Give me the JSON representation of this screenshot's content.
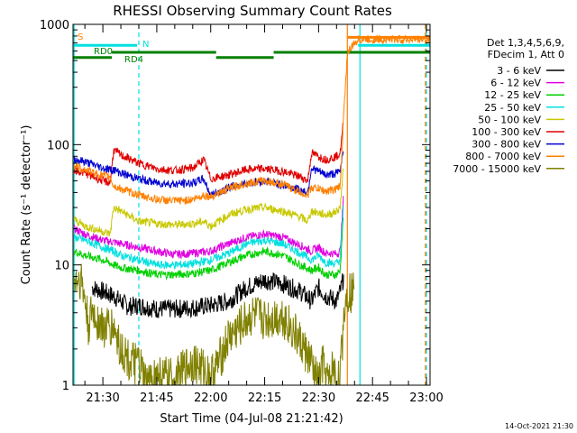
{
  "chart_data": {
    "type": "line",
    "title": "RHESSI Observing Summary Count Rates",
    "xlabel": "Start Time (04-Jul-08 21:21:42)",
    "ylabel": "Count Rate (s⁻¹ detector⁻¹)",
    "yscale": "log",
    "xlim_minutes_after_2100": [
      21.7,
      121.0
    ],
    "ylim": [
      1,
      1000
    ],
    "x_tick_labels": [
      "21:30",
      "21:45",
      "22:00",
      "22:15",
      "22:30",
      "22:45",
      "23:00"
    ],
    "x_tick_values_minutes_after_2100": [
      30,
      45,
      60,
      75,
      90,
      105,
      120
    ],
    "y_tick_labels": [
      "1",
      "10",
      "100",
      "1000"
    ],
    "y_tick_values": [
      1,
      10,
      100,
      1000
    ],
    "legend_header": [
      "Det 1,3,4,5,6,9,",
      "FDecim 1, Att 0"
    ],
    "legend_placement": "right",
    "x_unit": "minutes after 21:00",
    "series": [
      {
        "name": "3 - 6 keV",
        "color": "#000000",
        "x": [
          27,
          30,
          33,
          35,
          37,
          40,
          45,
          50,
          55,
          60,
          65,
          70,
          75,
          80,
          85,
          88,
          90,
          92,
          94,
          95,
          96,
          97
        ],
        "values": [
          6.5,
          6.0,
          5.5,
          5.0,
          4.5,
          4.6,
          4.3,
          4.3,
          4.4,
          4.6,
          5.0,
          6.5,
          7.5,
          7.0,
          6.0,
          5.0,
          6.5,
          5.5,
          5.2,
          5.0,
          6.0,
          8.0
        ]
      },
      {
        "name": "6 - 12 keV",
        "color": "#e000e0",
        "x": [
          22,
          25,
          30,
          33,
          35,
          40,
          45,
          50,
          55,
          60,
          65,
          70,
          75,
          80,
          85,
          88,
          90,
          92,
          94,
          95,
          96,
          97
        ],
        "values": [
          20,
          18,
          16,
          15.5,
          15,
          14,
          13,
          12.2,
          12.5,
          13,
          15,
          17,
          18,
          17,
          14.5,
          13,
          14,
          12.5,
          12.5,
          12.3,
          13,
          40
        ]
      },
      {
        "name": "12 - 25 keV",
        "color": "#00d000",
        "x": [
          22,
          25,
          30,
          33,
          35,
          40,
          45,
          50,
          55,
          60,
          65,
          70,
          75,
          80,
          85,
          88,
          90,
          92,
          94,
          95,
          96,
          97
        ],
        "values": [
          13,
          12,
          11,
          10,
          9.5,
          9,
          8.3,
          8.3,
          8.5,
          9,
          10.5,
          12,
          13,
          12,
          10,
          9,
          9.5,
          8.3,
          8.3,
          8.3,
          9,
          30
        ]
      },
      {
        "name": "25 - 50 keV",
        "color": "#00e0e0",
        "x": [
          22,
          25,
          30,
          33,
          35,
          40,
          45,
          50,
          55,
          60,
          65,
          70,
          75,
          80,
          85,
          88,
          90,
          92,
          94,
          95,
          96,
          97
        ],
        "values": [
          17,
          16,
          14,
          13,
          12,
          11,
          10,
          10,
          10.2,
          11,
          12.5,
          15,
          16,
          15,
          12.5,
          11,
          12,
          10.5,
          10.3,
          10.3,
          11,
          35
        ]
      },
      {
        "name": "50 - 100 keV",
        "color": "#c8c800",
        "x": [
          22,
          25,
          30,
          32,
          33,
          35,
          40,
          45,
          50,
          55,
          58,
          60,
          65,
          70,
          75,
          80,
          85,
          87,
          88,
          90,
          92,
          94,
          95,
          96,
          97
        ],
        "values": [
          24,
          21,
          19,
          18,
          30,
          28,
          23,
          22,
          21.5,
          22,
          23,
          21,
          26,
          29,
          30,
          28,
          25,
          23,
          28,
          27,
          26,
          27,
          28,
          30,
          70
        ]
      },
      {
        "name": "100 - 300 keV",
        "color": "#e00000",
        "x": [
          22,
          25,
          30,
          32,
          33,
          35,
          40,
          45,
          50,
          55,
          58,
          60,
          65,
          70,
          75,
          80,
          85,
          87,
          88,
          90,
          92,
          94,
          95,
          96,
          97
        ],
        "values": [
          62,
          58,
          50,
          48,
          90,
          82,
          70,
          63,
          61,
          64,
          75,
          52,
          56,
          62,
          63,
          60,
          54,
          50,
          85,
          80,
          75,
          78,
          80,
          85,
          165
        ]
      },
      {
        "name": "300 - 800 keV",
        "color": "#0000d0",
        "x": [
          22,
          25,
          30,
          32,
          33,
          35,
          40,
          45,
          50,
          55,
          58,
          60,
          65,
          70,
          75,
          80,
          85,
          87,
          88,
          90,
          92,
          94,
          95,
          96,
          97
        ],
        "values": [
          76,
          72,
          64,
          62,
          62,
          58,
          52,
          48,
          47,
          48,
          52,
          38,
          44,
          48,
          50,
          46,
          42,
          40,
          64,
          60,
          56,
          57,
          58,
          60,
          100
        ]
      },
      {
        "name": "800 - 7000 keV",
        "color": "#ff8000",
        "x": [
          22,
          25,
          30,
          32,
          33,
          35,
          40,
          45,
          50,
          55,
          58,
          60,
          65,
          70,
          75,
          80,
          85,
          87,
          88,
          90,
          92,
          94,
          95,
          96,
          97,
          98,
          101,
          121
        ],
        "values": [
          66,
          62,
          55,
          54,
          45,
          43,
          38,
          35,
          34,
          35,
          38,
          37,
          43,
          48,
          50,
          47,
          40,
          38,
          44,
          43,
          41,
          42,
          43,
          45,
          180,
          580,
          750,
          750
        ]
      },
      {
        "name": "7000 - 15000 keV",
        "color": "#808000",
        "x": [
          22,
          24,
          25,
          26,
          27,
          30,
          33,
          35,
          38,
          40,
          42,
          45,
          50,
          55,
          60,
          62,
          65,
          68,
          70,
          72,
          75,
          80,
          84,
          86,
          88,
          89,
          90,
          91,
          92,
          93,
          94,
          95,
          96,
          96.5,
          97,
          98,
          100
        ],
        "values": [
          7.5,
          7.5,
          5,
          3,
          4,
          3,
          3,
          2,
          1.5,
          1.5,
          1,
          1.2,
          1.1,
          1.6,
          1.2,
          1.5,
          2.5,
          3,
          3.5,
          3.8,
          3.5,
          3.8,
          2.5,
          2,
          1.5,
          1.2,
          1,
          1.5,
          1.2,
          1,
          1.5,
          1,
          1.2,
          2,
          4,
          6,
          6
        ]
      }
    ],
    "annotations": {
      "state_bars": [
        {
          "label": "S",
          "color": "#ff8000",
          "x_start": 21.7,
          "x_end": 21.7,
          "x_start_2": 98.0,
          "x_end_2": 121.0,
          "y": 780
        },
        {
          "label": "N",
          "color": "#00e0e0",
          "x_start": 21.7,
          "x_end": 39.5,
          "x_start_2": 101.0,
          "x_end_2": 121.0,
          "y": 670
        },
        {
          "label": "RD0",
          "color": "#008000",
          "x_start": 21.7,
          "x_end": 32.5,
          "y": 530
        },
        {
          "label": "RD4",
          "color": "#008000",
          "x_start": 32.5,
          "x_end": 61.5,
          "y": 585
        },
        {
          "label": "",
          "color": "#008000",
          "x_start": 61.5,
          "x_end": 77.5,
          "y": 530
        },
        {
          "label": "",
          "color": "#008000",
          "x_start": 77.5,
          "x_end": 121.0,
          "y": 585
        }
      ],
      "vlines": [
        {
          "x": 22.0,
          "color": "#00e0e0",
          "style": "solid"
        },
        {
          "x": 40.0,
          "color": "#00e0e0",
          "style": "dashed"
        },
        {
          "x": 98.0,
          "color": "#ff8000",
          "style": "solid"
        },
        {
          "x": 101.5,
          "color": "#00e0e0",
          "style": "solid"
        },
        {
          "x": 119.7,
          "color": "#ff8000",
          "style": "dashed"
        },
        {
          "x": 120.0,
          "color": "#00e0e0",
          "style": "dashed"
        }
      ]
    },
    "footer_date": "14-Oct-2021 21:30"
  }
}
